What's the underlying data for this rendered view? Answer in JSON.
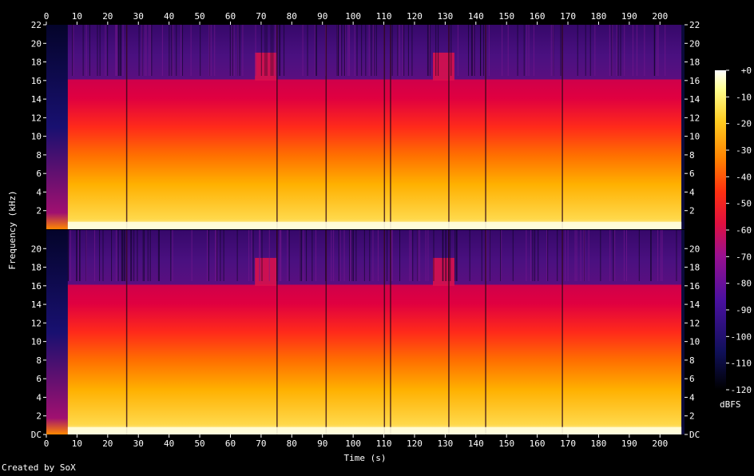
{
  "chart_data": {
    "type": "heatmap",
    "title": "",
    "xlabel": "Time (s)",
    "ylabel": "Frequency (kHz)",
    "xlim": [
      0,
      208
    ],
    "ylim": [
      0,
      22
    ],
    "x_ticks": [
      0,
      10,
      20,
      30,
      40,
      50,
      60,
      70,
      80,
      90,
      100,
      110,
      120,
      130,
      140,
      150,
      160,
      170,
      180,
      190,
      200
    ],
    "channels": [
      {
        "y_ticks": [
          "2",
          "4",
          "6",
          "8",
          "10",
          "12",
          "14",
          "16",
          "18",
          "20",
          "22"
        ]
      },
      {
        "y_ticks": [
          "DC",
          "2",
          "4",
          "6",
          "8",
          "10",
          "12",
          "14",
          "16",
          "18",
          "20"
        ]
      }
    ],
    "colorbar": {
      "label": "dBFS",
      "range": [
        -120,
        0
      ],
      "ticks": [
        "+0",
        "-10",
        "-20",
        "-30",
        "-40",
        "-50",
        "-60",
        "-70",
        "-80",
        "-90",
        "-100",
        "-110",
        "-120"
      ]
    },
    "series": [
      {
        "description": "main content band 0–16 kHz, bright yellow near DC fading to red by 12–16 kHz",
        "x": [
          7,
          207
        ]
      },
      {
        "description": "near-silence intro",
        "x": [
          0,
          7
        ]
      }
    ],
    "high_band_bursts_s": [
      [
        68,
        75
      ],
      [
        126,
        133
      ]
    ],
    "dropouts_s": [
      26,
      75,
      91,
      110,
      112,
      131,
      143,
      168
    ],
    "credit": "Created by SoX"
  }
}
